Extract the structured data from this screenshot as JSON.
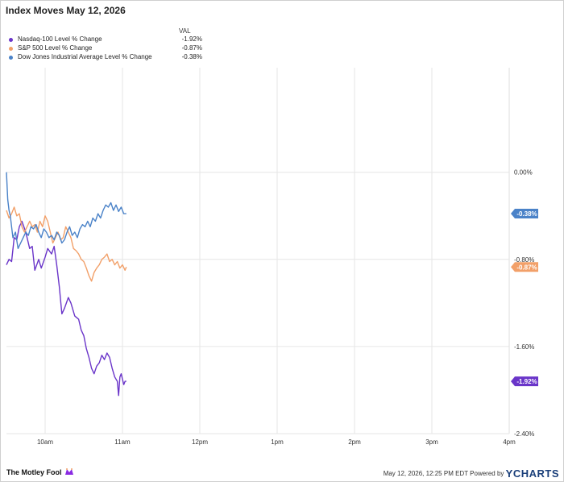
{
  "title": "Index Moves May 12, 2026",
  "legend_header": "VAL",
  "footer": {
    "brand": "The Motley Fool",
    "timestamp": "May 12, 2026, 12:25 PM EDT",
    "powered_by": "Powered by",
    "ycharts": "YCHARTS"
  },
  "chart_data": {
    "type": "line",
    "title": "Index Moves May 12, 2026",
    "x_ticks": [
      "10am",
      "11am",
      "12pm",
      "1pm",
      "2pm",
      "3pm",
      "4pm"
    ],
    "x_range": [
      "9:30",
      "16:00"
    ],
    "y_ticks": [
      "0.00%",
      "-0.80%",
      "-1.60%",
      "-2.40%"
    ],
    "y_tick_values": [
      0.0,
      -0.8,
      -1.6,
      -2.4
    ],
    "ylim": [
      -2.4,
      0.96
    ],
    "y_axis_side": "right",
    "grid": true,
    "legend_position": "top-left",
    "series": [
      {
        "name": "Nasdaq-100 Level % Change",
        "value_label": "-1.92%",
        "end_value": -1.92,
        "color": "#6a35c9",
        "points": [
          [
            0,
            -0.85
          ],
          [
            2,
            -0.8
          ],
          [
            4,
            -0.82
          ],
          [
            6,
            -0.6
          ],
          [
            8,
            -0.62
          ],
          [
            10,
            -0.5
          ],
          [
            12,
            -0.45
          ],
          [
            15,
            -0.55
          ],
          [
            18,
            -0.7
          ],
          [
            20,
            -0.68
          ],
          [
            22,
            -0.9
          ],
          [
            25,
            -0.8
          ],
          [
            27,
            -0.88
          ],
          [
            30,
            -0.78
          ],
          [
            32,
            -0.7
          ],
          [
            35,
            -0.75
          ],
          [
            37,
            -0.68
          ],
          [
            39,
            -0.85
          ],
          [
            41,
            -1.05
          ],
          [
            43,
            -1.3
          ],
          [
            45,
            -1.25
          ],
          [
            48,
            -1.15
          ],
          [
            50,
            -1.2
          ],
          [
            53,
            -1.32
          ],
          [
            56,
            -1.35
          ],
          [
            58,
            -1.45
          ],
          [
            60,
            -1.5
          ],
          [
            62,
            -1.62
          ],
          [
            64,
            -1.7
          ],
          [
            66,
            -1.8
          ],
          [
            68,
            -1.85
          ],
          [
            70,
            -1.78
          ],
          [
            72,
            -1.75
          ],
          [
            74,
            -1.68
          ],
          [
            76,
            -1.72
          ],
          [
            78,
            -1.66
          ],
          [
            80,
            -1.7
          ],
          [
            82,
            -1.8
          ],
          [
            84,
            -1.88
          ],
          [
            86,
            -1.92
          ],
          [
            87,
            -2.05
          ],
          [
            88,
            -1.88
          ],
          [
            89,
            -1.85
          ],
          [
            90,
            -1.9
          ],
          [
            91,
            -1.95
          ],
          [
            92,
            -1.92
          ],
          [
            93,
            -1.92
          ]
        ]
      },
      {
        "name": "S&P 500 Level % Change",
        "value_label": "-0.87%",
        "end_value": -0.87,
        "color": "#f2a069",
        "points": [
          [
            0,
            -0.35
          ],
          [
            2,
            -0.42
          ],
          [
            4,
            -0.38
          ],
          [
            6,
            -0.32
          ],
          [
            8,
            -0.4
          ],
          [
            10,
            -0.38
          ],
          [
            12,
            -0.5
          ],
          [
            14,
            -0.55
          ],
          [
            16,
            -0.5
          ],
          [
            18,
            -0.45
          ],
          [
            20,
            -0.5
          ],
          [
            22,
            -0.48
          ],
          [
            24,
            -0.55
          ],
          [
            26,
            -0.45
          ],
          [
            28,
            -0.5
          ],
          [
            30,
            -0.4
          ],
          [
            32,
            -0.45
          ],
          [
            34,
            -0.55
          ],
          [
            36,
            -0.65
          ],
          [
            38,
            -0.6
          ],
          [
            40,
            -0.55
          ],
          [
            42,
            -0.62
          ],
          [
            44,
            -0.6
          ],
          [
            46,
            -0.5
          ],
          [
            48,
            -0.55
          ],
          [
            50,
            -0.6
          ],
          [
            52,
            -0.7
          ],
          [
            54,
            -0.72
          ],
          [
            56,
            -0.75
          ],
          [
            58,
            -0.8
          ],
          [
            60,
            -0.82
          ],
          [
            62,
            -0.88
          ],
          [
            64,
            -0.95
          ],
          [
            66,
            -1.0
          ],
          [
            68,
            -0.92
          ],
          [
            70,
            -0.88
          ],
          [
            72,
            -0.85
          ],
          [
            74,
            -0.8
          ],
          [
            76,
            -0.78
          ],
          [
            78,
            -0.75
          ],
          [
            80,
            -0.82
          ],
          [
            82,
            -0.8
          ],
          [
            84,
            -0.85
          ],
          [
            86,
            -0.82
          ],
          [
            88,
            -0.88
          ],
          [
            90,
            -0.85
          ],
          [
            92,
            -0.9
          ],
          [
            93,
            -0.87
          ]
        ]
      },
      {
        "name": "Dow Jones Industrial Average Level % Change",
        "value_label": "-0.38%",
        "end_value": -0.38,
        "color": "#4a82c8",
        "points": [
          [
            0,
            0.0
          ],
          [
            1,
            -0.25
          ],
          [
            2,
            -0.35
          ],
          [
            3,
            -0.4
          ],
          [
            4,
            -0.5
          ],
          [
            5,
            -0.6
          ],
          [
            7,
            -0.55
          ],
          [
            9,
            -0.7
          ],
          [
            11,
            -0.65
          ],
          [
            13,
            -0.6
          ],
          [
            15,
            -0.55
          ],
          [
            17,
            -0.58
          ],
          [
            19,
            -0.5
          ],
          [
            21,
            -0.52
          ],
          [
            23,
            -0.48
          ],
          [
            25,
            -0.55
          ],
          [
            27,
            -0.6
          ],
          [
            29,
            -0.52
          ],
          [
            31,
            -0.55
          ],
          [
            33,
            -0.6
          ],
          [
            35,
            -0.58
          ],
          [
            37,
            -0.62
          ],
          [
            39,
            -0.55
          ],
          [
            41,
            -0.58
          ],
          [
            43,
            -0.65
          ],
          [
            45,
            -0.62
          ],
          [
            47,
            -0.55
          ],
          [
            49,
            -0.5
          ],
          [
            51,
            -0.58
          ],
          [
            53,
            -0.55
          ],
          [
            55,
            -0.6
          ],
          [
            57,
            -0.52
          ],
          [
            59,
            -0.48
          ],
          [
            61,
            -0.5
          ],
          [
            63,
            -0.45
          ],
          [
            65,
            -0.5
          ],
          [
            67,
            -0.42
          ],
          [
            69,
            -0.45
          ],
          [
            71,
            -0.38
          ],
          [
            73,
            -0.42
          ],
          [
            75,
            -0.35
          ],
          [
            77,
            -0.3
          ],
          [
            79,
            -0.32
          ],
          [
            81,
            -0.28
          ],
          [
            83,
            -0.35
          ],
          [
            85,
            -0.3
          ],
          [
            87,
            -0.36
          ],
          [
            89,
            -0.32
          ],
          [
            91,
            -0.38
          ],
          [
            93,
            -0.38
          ]
        ]
      }
    ]
  }
}
